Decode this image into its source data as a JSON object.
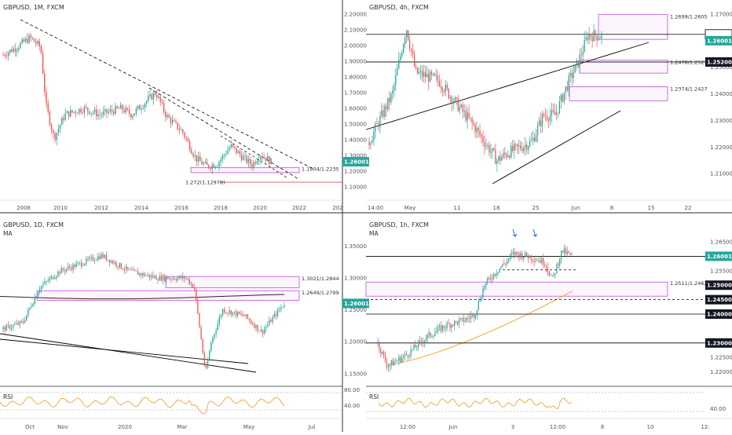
{
  "colors": {
    "up": "#26a69a",
    "down": "#ef5350",
    "zone": "#c04fd8",
    "badge_green": "#26a69a",
    "badge_dark": "#131722",
    "rsi": "#f7a13b",
    "ma": "#f7a13b",
    "level_red": "#e05050",
    "trend": "#000000",
    "arrow": "#2962ff"
  },
  "chart_data": [
    {
      "id": "monthly",
      "type": "candlestick",
      "title": "GBPUSD, 1M, FXCM",
      "ylim": [
        1.05,
        2.2
      ],
      "y_ticks": [
        "2.20000",
        "2.10000",
        "2.00000",
        "1.90000",
        "1.80000",
        "1.70000",
        "1.60000",
        "1.50000",
        "1.40000",
        "1.30000",
        "1.20000",
        "1.10000"
      ],
      "x_ticks": [
        "2008",
        "2010",
        "2012",
        "2014",
        "2016",
        "2018",
        "2020",
        "2022",
        "202"
      ],
      "last_price": "1.26001",
      "zones": [
        {
          "label": "1.1904/1.2235",
          "low": 1.1904,
          "high": 1.2235
        }
      ],
      "levels": [
        {
          "label": "1.272(1.12978)",
          "value": 1.12978
        }
      ]
    },
    {
      "id": "h4",
      "type": "candlestick",
      "title": "GBPUSD, 4h, FXCM",
      "ylim": [
        1.2,
        1.27
      ],
      "y_ticks": [
        "1.27000",
        "1.25000",
        "1.24000",
        "1.23000",
        "1.22000",
        "1.21000"
      ],
      "x_ticks": [
        "14:00",
        "May",
        "11",
        "18",
        "25",
        "Jun",
        "8",
        "15",
        "22"
      ],
      "price_labels": [
        "1.26240",
        "1.26001",
        "1.25200"
      ],
      "zones": [
        {
          "label": "1.2699/1.2605",
          "low": 1.2605,
          "high": 1.2699
        },
        {
          "label": "1.2478/1.2527",
          "low": 1.2478,
          "high": 1.2527
        },
        {
          "label": "1.2374/1.2427",
          "low": 1.2374,
          "high": 1.2427
        }
      ],
      "levels": [
        {
          "value": 1.2624
        },
        {
          "value": 1.252
        }
      ]
    },
    {
      "id": "daily",
      "type": "candlestick",
      "title": "GBPUSD, 1D, FXCM",
      "indicator": "MA",
      "ylim": [
        1.13,
        1.37
      ],
      "y_ticks": [
        "1.35000",
        "1.30000",
        "1.25000",
        "1.20000",
        "1.15000"
      ],
      "x_ticks": [
        "Oct",
        "Nov",
        "2020",
        "Mar",
        "May",
        "Jul"
      ],
      "last_price": "1.26001",
      "zones": [
        {
          "label": "1.3021/1.2844",
          "low": 1.2844,
          "high": 1.3021
        },
        {
          "label": "1.2649/1.2799",
          "low": 1.2649,
          "high": 1.2799
        }
      ],
      "rsi": {
        "label": "RSI",
        "ticks": [
          "80.00",
          "40.00"
        ]
      }
    },
    {
      "id": "h1",
      "type": "candlestick",
      "title": "GBPUSD, 1h, FXCM",
      "indicator": "MA",
      "ylim": [
        1.215,
        1.268
      ],
      "y_ticks": [
        "1.26500",
        "1.25500",
        "1.25000",
        "1.24500",
        "1.24000",
        "1.23000",
        "1.22500",
        "1.22000"
      ],
      "x_ticks": [
        "12:00",
        "Jun",
        "3",
        "12:00",
        "8",
        "10",
        "12:"
      ],
      "price_labels": [
        "1.26001",
        "1.25000",
        "1.24500",
        "1.24000",
        "1.23000"
      ],
      "zones": [
        {
          "label": "1.2511/1.2462",
          "low": 1.2462,
          "high": 1.2511
        }
      ],
      "levels": [
        {
          "value": 1.26
        },
        {
          "value": 1.245
        },
        {
          "value": 1.24
        },
        {
          "value": 1.23
        }
      ],
      "rsi": {
        "label": "RSI",
        "ticks": [
          "40.00"
        ]
      }
    }
  ]
}
